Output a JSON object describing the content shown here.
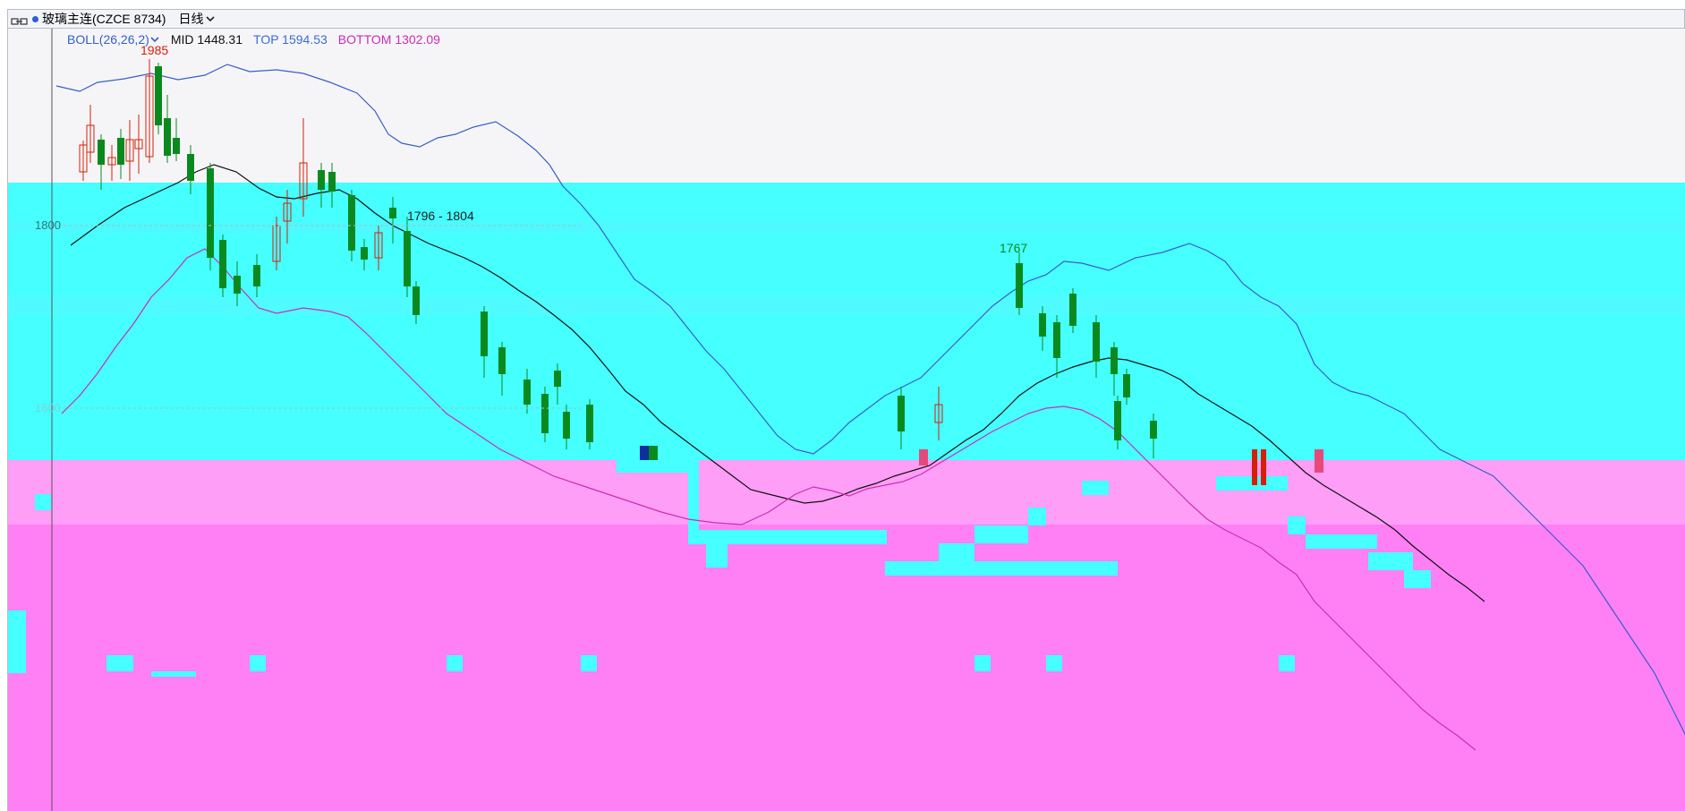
{
  "window": {
    "symbol": "玻璃主连(CZCE 8734)",
    "period": "日线"
  },
  "indicator": {
    "name": "BOLL(26,26,2)",
    "mid": "MID 1448.31",
    "top": "TOP 1594.53",
    "bottom": "BOTTOM 1302.09"
  },
  "annotations": {
    "high_label": "1985",
    "range_label": "1796 - 1804",
    "peak_label": "1767",
    "price_1800": "1800",
    "price_1600": "1600"
  },
  "colors": {
    "up": "#d81e06",
    "down": "#0a8a1e",
    "cyan": "#46ffff",
    "pink": "#ff80f5",
    "pink_light": "#ff9ef6",
    "boll_upper": "#3a5ec8",
    "boll_mid": "#111111",
    "boll_lower": "#cc2db5"
  }
}
